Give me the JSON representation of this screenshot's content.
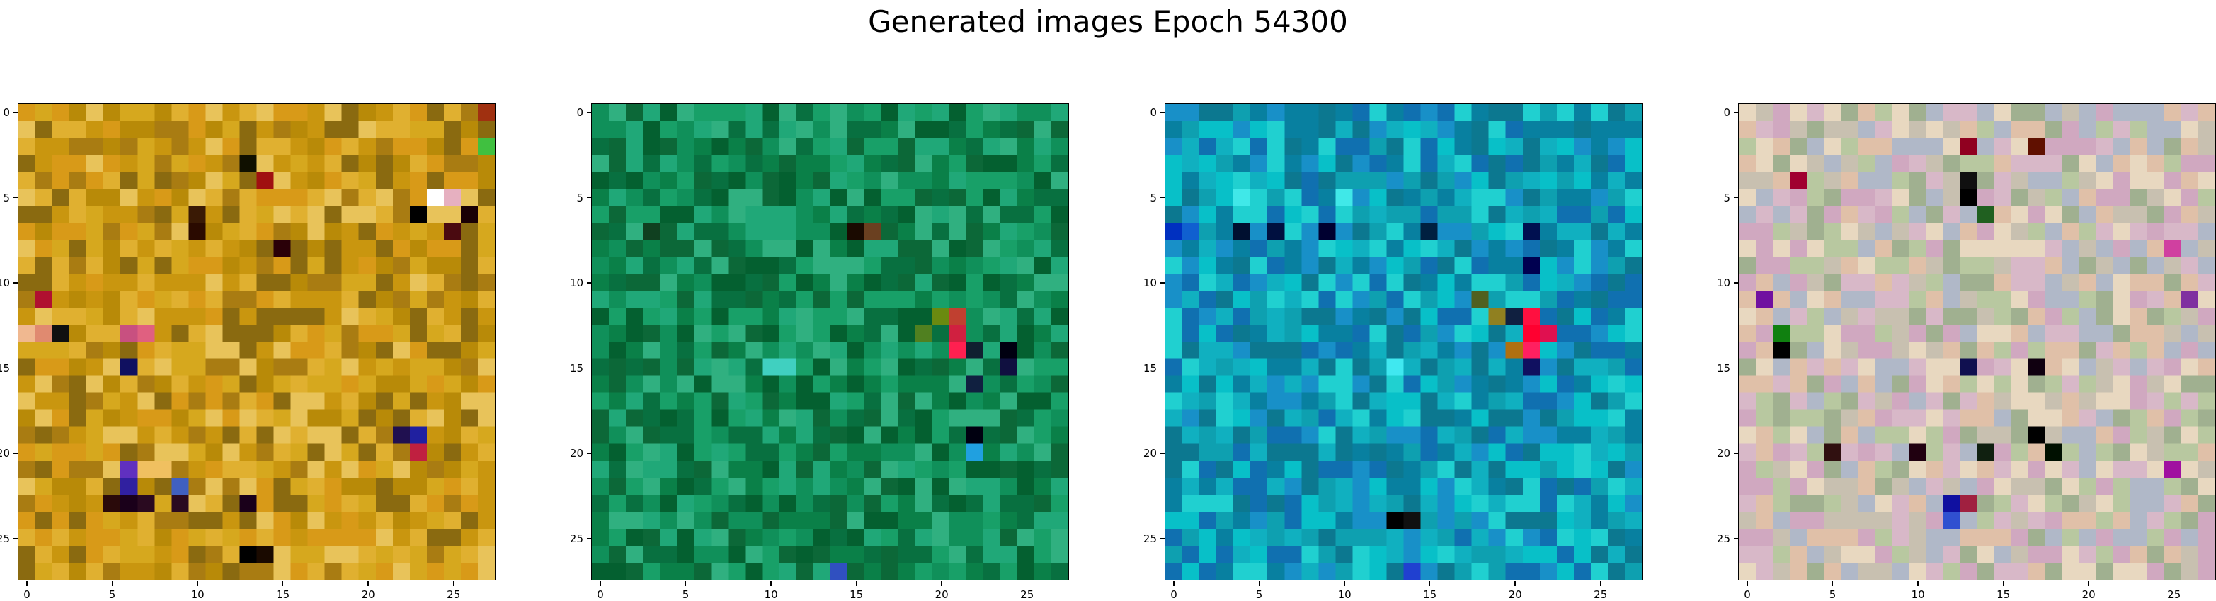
{
  "chart_data": {
    "type": "heatmap",
    "title": "Generated images Epoch 54300",
    "grid": false,
    "panels": [
      {
        "name": "",
        "base_color": "#c9960f",
        "palette": [
          "#c9960f",
          "#d6a81e",
          "#b88a08",
          "#e0b030",
          "#a97c12",
          "#d89a18",
          "#e8c35a",
          "#8a6a10"
        ],
        "accents": [
          {
            "row": 5,
            "col": 24,
            "color": "#ffffff"
          },
          {
            "row": 5,
            "col": 25,
            "color": "#e6b0c0"
          },
          {
            "row": 6,
            "col": 23,
            "color": "#000000"
          },
          {
            "row": 6,
            "col": 26,
            "color": "#1a0005"
          },
          {
            "row": 7,
            "col": 25,
            "color": "#4a0a10"
          },
          {
            "row": 6,
            "col": 10,
            "color": "#3a1a05"
          },
          {
            "row": 7,
            "col": 10,
            "color": "#2a0a00"
          },
          {
            "row": 8,
            "col": 15,
            "color": "#2a0008"
          },
          {
            "row": 11,
            "col": 1,
            "color": "#b01030"
          },
          {
            "row": 13,
            "col": 0,
            "color": "#f0b890"
          },
          {
            "row": 13,
            "col": 1,
            "color": "#e08a70"
          },
          {
            "row": 13,
            "col": 2,
            "color": "#101010"
          },
          {
            "row": 13,
            "col": 6,
            "color": "#c85080"
          },
          {
            "row": 13,
            "col": 7,
            "color": "#e06080"
          },
          {
            "row": 15,
            "col": 6,
            "color": "#101060"
          },
          {
            "row": 19,
            "col": 22,
            "color": "#201050"
          },
          {
            "row": 19,
            "col": 23,
            "color": "#2020a0"
          },
          {
            "row": 20,
            "col": 23,
            "color": "#c02040"
          },
          {
            "row": 21,
            "col": 6,
            "color": "#6030c0"
          },
          {
            "row": 21,
            "col": 7,
            "color": "#f0c060"
          },
          {
            "row": 21,
            "col": 8,
            "color": "#f0c060"
          },
          {
            "row": 22,
            "col": 6,
            "color": "#3020a0"
          },
          {
            "row": 22,
            "col": 9,
            "color": "#4060c0"
          },
          {
            "row": 23,
            "col": 5,
            "color": "#2a0a0a"
          },
          {
            "row": 23,
            "col": 6,
            "color": "#1a001a"
          },
          {
            "row": 23,
            "col": 7,
            "color": "#2a0a20"
          },
          {
            "row": 23,
            "col": 9,
            "color": "#2a0a20"
          },
          {
            "row": 23,
            "col": 13,
            "color": "#1a001a"
          },
          {
            "row": 26,
            "col": 13,
            "color": "#000000"
          },
          {
            "row": 26,
            "col": 14,
            "color": "#1a0a00"
          },
          {
            "row": 3,
            "col": 13,
            "color": "#101000"
          },
          {
            "row": 4,
            "col": 14,
            "color": "#a01010"
          },
          {
            "row": 2,
            "col": 27,
            "color": "#40c040"
          },
          {
            "row": 0,
            "col": 27,
            "color": "#a03010"
          }
        ]
      },
      {
        "name": "",
        "base_color": "#10905a",
        "palette": [
          "#10905a",
          "#0a8048",
          "#18a068",
          "#087040",
          "#20a878",
          "#0c6838",
          "#30b080",
          "#046030"
        ],
        "accents": [
          {
            "row": 7,
            "col": 15,
            "color": "#1a0a00"
          },
          {
            "row": 7,
            "col": 16,
            "color": "#6a4020"
          },
          {
            "row": 7,
            "col": 3,
            "color": "#104020"
          },
          {
            "row": 12,
            "col": 21,
            "color": "#c04030"
          },
          {
            "row": 13,
            "col": 21,
            "color": "#d02040"
          },
          {
            "row": 14,
            "col": 21,
            "color": "#ff2050"
          },
          {
            "row": 14,
            "col": 22,
            "color": "#102030"
          },
          {
            "row": 14,
            "col": 24,
            "color": "#000010"
          },
          {
            "row": 15,
            "col": 24,
            "color": "#101040"
          },
          {
            "row": 12,
            "col": 20,
            "color": "#6a8a10"
          },
          {
            "row": 13,
            "col": 19,
            "color": "#508020"
          },
          {
            "row": 16,
            "col": 22,
            "color": "#102040"
          },
          {
            "row": 19,
            "col": 22,
            "color": "#000010"
          },
          {
            "row": 20,
            "col": 22,
            "color": "#20a0e0"
          },
          {
            "row": 15,
            "col": 10,
            "color": "#40d0c0"
          },
          {
            "row": 15,
            "col": 11,
            "color": "#40d0c0"
          },
          {
            "row": 27,
            "col": 14,
            "color": "#3050c0"
          }
        ]
      },
      {
        "name": "",
        "base_color": "#0ea0b0",
        "palette": [
          "#0ea0b0",
          "#10b0c0",
          "#0880a0",
          "#1890c8",
          "#08c0c8",
          "#0c7890",
          "#20d0d0",
          "#1070b0"
        ],
        "accents": [
          {
            "row": 7,
            "col": 0,
            "color": "#0030c0"
          },
          {
            "row": 7,
            "col": 1,
            "color": "#1060d0"
          },
          {
            "row": 7,
            "col": 4,
            "color": "#001030"
          },
          {
            "row": 7,
            "col": 6,
            "color": "#001040"
          },
          {
            "row": 7,
            "col": 9,
            "color": "#000030"
          },
          {
            "row": 7,
            "col": 15,
            "color": "#002040"
          },
          {
            "row": 7,
            "col": 21,
            "color": "#001050"
          },
          {
            "row": 11,
            "col": 18,
            "color": "#506020"
          },
          {
            "row": 12,
            "col": 20,
            "color": "#102040"
          },
          {
            "row": 12,
            "col": 21,
            "color": "#ff1040"
          },
          {
            "row": 13,
            "col": 21,
            "color": "#ff0030"
          },
          {
            "row": 13,
            "col": 22,
            "color": "#e01050"
          },
          {
            "row": 14,
            "col": 20,
            "color": "#b07010"
          },
          {
            "row": 14,
            "col": 21,
            "color": "#ff2060"
          },
          {
            "row": 15,
            "col": 21,
            "color": "#101060"
          },
          {
            "row": 12,
            "col": 19,
            "color": "#908020"
          },
          {
            "row": 9,
            "col": 21,
            "color": "#000050"
          },
          {
            "row": 24,
            "col": 13,
            "color": "#000000"
          },
          {
            "row": 24,
            "col": 14,
            "color": "#101010"
          },
          {
            "row": 27,
            "col": 14,
            "color": "#2040d0"
          },
          {
            "row": 5,
            "col": 4,
            "color": "#40e8e8"
          },
          {
            "row": 5,
            "col": 10,
            "color": "#40e8e8"
          },
          {
            "row": 15,
            "col": 13,
            "color": "#40e8f0"
          }
        ]
      },
      {
        "name": "",
        "base_color": "#c8c0b0",
        "palette": [
          "#c8c0b0",
          "#d8b8c8",
          "#b8c8a0",
          "#e0c0a8",
          "#a0b090",
          "#d0a8c0",
          "#e8d8c0",
          "#b0b8c8"
        ],
        "accents": [
          {
            "row": 2,
            "col": 13,
            "color": "#900020"
          },
          {
            "row": 2,
            "col": 17,
            "color": "#601000"
          },
          {
            "row": 4,
            "col": 13,
            "color": "#101010"
          },
          {
            "row": 5,
            "col": 13,
            "color": "#000000"
          },
          {
            "row": 4,
            "col": 3,
            "color": "#a00030"
          },
          {
            "row": 6,
            "col": 14,
            "color": "#206020"
          },
          {
            "row": 11,
            "col": 1,
            "color": "#7010a0"
          },
          {
            "row": 13,
            "col": 2,
            "color": "#108010"
          },
          {
            "row": 14,
            "col": 2,
            "color": "#000000"
          },
          {
            "row": 15,
            "col": 13,
            "color": "#101050"
          },
          {
            "row": 15,
            "col": 17,
            "color": "#100010"
          },
          {
            "row": 19,
            "col": 17,
            "color": "#000000"
          },
          {
            "row": 20,
            "col": 5,
            "color": "#301010"
          },
          {
            "row": 20,
            "col": 10,
            "color": "#200010"
          },
          {
            "row": 20,
            "col": 14,
            "color": "#102010"
          },
          {
            "row": 20,
            "col": 18,
            "color": "#001000"
          },
          {
            "row": 23,
            "col": 12,
            "color": "#1010a0"
          },
          {
            "row": 24,
            "col": 12,
            "color": "#3050d0"
          },
          {
            "row": 23,
            "col": 13,
            "color": "#a02040"
          },
          {
            "row": 21,
            "col": 25,
            "color": "#a010a0"
          },
          {
            "row": 8,
            "col": 25,
            "color": "#d040a0"
          },
          {
            "row": 11,
            "col": 26,
            "color": "#8030a0"
          }
        ]
      }
    ],
    "rows": 28,
    "cols": 28,
    "xlim": [
      -0.5,
      27.5
    ],
    "ylim": [
      27.5,
      -0.5
    ],
    "xticks": [
      0,
      5,
      10,
      15,
      20,
      25
    ],
    "yticks": [
      0,
      5,
      10,
      15,
      20,
      25
    ]
  }
}
